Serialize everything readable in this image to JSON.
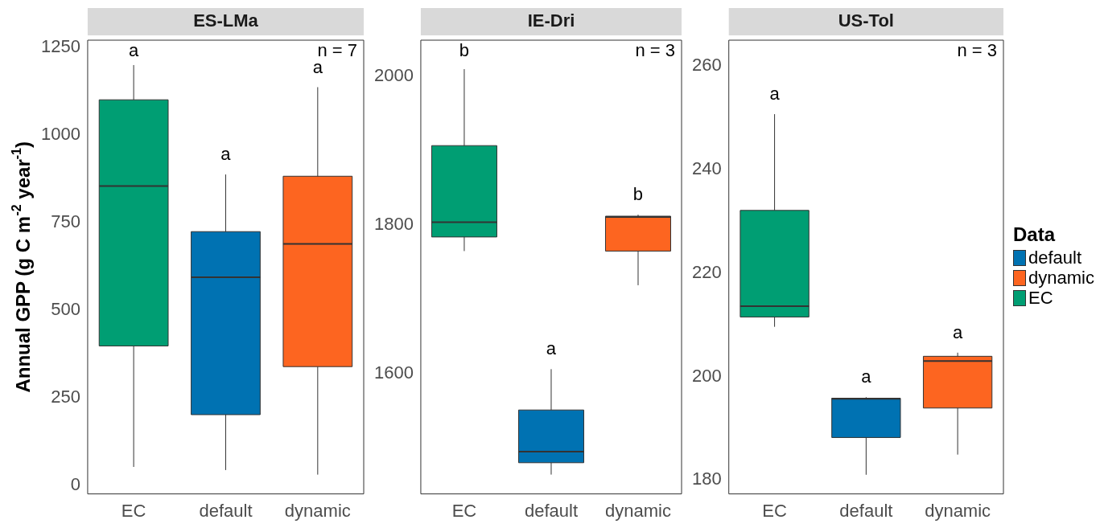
{
  "chart_data": [
    {
      "type": "box",
      "title": "ES-LMa",
      "ylabel": "Annual GPP (g C m$^{-2}$ year$^{-1}$)",
      "categories": [
        "EC",
        "default",
        "dynamic"
      ],
      "ylim": [
        -24,
        1270
      ],
      "yticks": [
        0,
        250,
        500,
        750,
        1000,
        1250
      ],
      "grid": false,
      "series": [
        {
          "color": "#0072b2",
          "boxes": [
            null,
            {
              "low": 44,
              "q1": 202,
              "median": 594,
              "q3": 724,
              "high": 887
            },
            null
          ]
        },
        {
          "color": "#fd6520",
          "boxes": [
            null,
            null,
            {
              "low": 31,
              "q1": 339,
              "median": 689,
              "q3": 882,
              "high": 1136
            }
          ]
        },
        {
          "color": "#009e73",
          "boxes": [
            {
              "low": 53,
              "q1": 398,
              "median": 854,
              "q3": 1100,
              "high": 1199
            },
            null,
            null
          ]
        }
      ],
      "annotations": [
        "a",
        "a",
        "a",
        "n = 7"
      ]
    },
    {
      "type": "box",
      "title": "IE-Dri",
      "categories": [
        "EC",
        "default",
        "dynamic"
      ],
      "ylim": [
        1438,
        2049
      ],
      "yticks": [
        1600,
        1800,
        2000
      ],
      "grid": false,
      "series": [
        {
          "color": "#0072b2",
          "boxes": [
            null,
            {
              "low": 1464,
              "q1": 1480,
              "median": 1495,
              "q3": 1551,
              "high": 1606
            },
            null
          ]
        },
        {
          "color": "#fd6520",
          "boxes": [
            null,
            null,
            {
              "low": 1719,
              "q1": 1765,
              "median": 1811,
              "q3": 1812,
              "high": 1814
            }
          ]
        },
        {
          "color": "#009e73",
          "boxes": [
            {
              "low": 1765,
              "q1": 1784,
              "median": 1804,
              "q3": 1907,
              "high": 2010
            },
            null,
            null
          ]
        }
      ],
      "annotations": [
        "b",
        "a",
        "b",
        "n = 3"
      ]
    },
    {
      "type": "box",
      "title": "US-Tol",
      "categories": [
        "EC",
        "default",
        "dynamic"
      ],
      "ylim": [
        177.3,
        265
      ],
      "yticks": [
        180,
        200,
        220,
        240,
        260
      ],
      "grid": false,
      "legend": "right",
      "legend_title": "Data",
      "series": [
        {
          "name": "default",
          "color": "#0072b2",
          "boxes": [
            null,
            {
              "low": 181,
              "q1": 188.2,
              "median": 195.7,
              "q3": 195.8,
              "high": 196
            },
            null
          ]
        },
        {
          "name": "dynamic",
          "color": "#fd6520",
          "boxes": [
            null,
            null,
            {
              "low": 184.9,
              "q1": 193.9,
              "median": 203,
              "q3": 203.9,
              "high": 204.6
            }
          ]
        },
        {
          "name": "EC",
          "color": "#009e73",
          "boxes": [
            {
              "low": 209.6,
              "q1": 211.5,
              "median": 213.6,
              "q3": 232.1,
              "high": 250.7
            },
            null,
            null
          ]
        }
      ],
      "annotations": [
        "a",
        "a",
        "a",
        "n = 3"
      ]
    }
  ]
}
